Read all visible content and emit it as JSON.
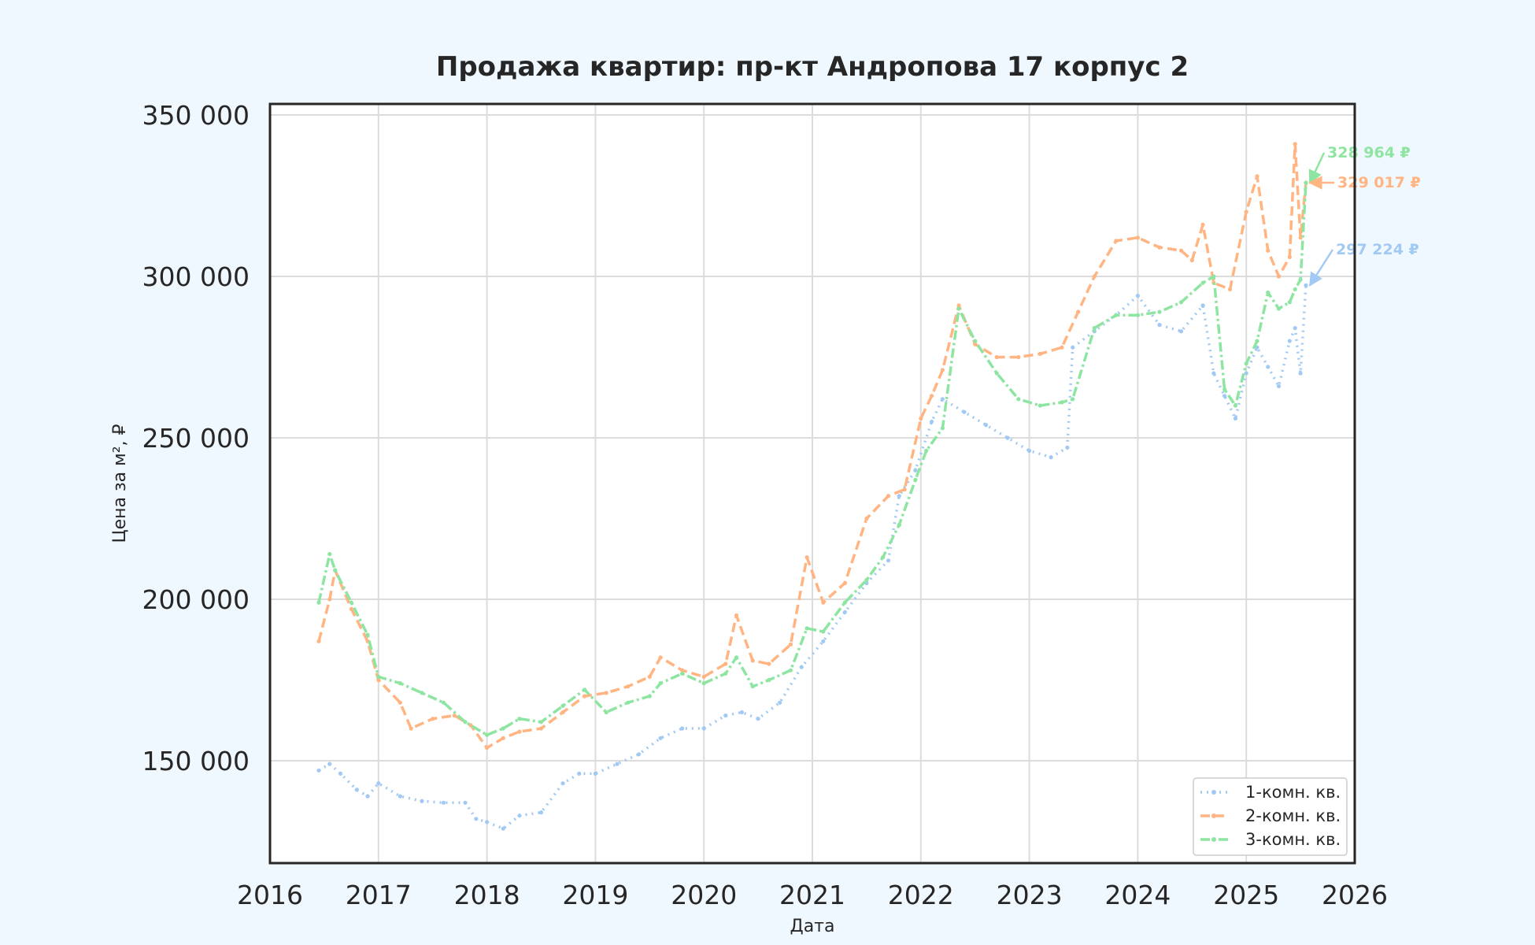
{
  "chart_data": {
    "type": "line",
    "title": "Продажа квартир: пр-кт Андропова 17 корпус 2",
    "xlabel": "Дата",
    "ylabel": "Цена за м², ₽",
    "xlim": [
      2016,
      2026
    ],
    "ylim": [
      118000,
      350000
    ],
    "x_ticks": [
      2016,
      2017,
      2018,
      2019,
      2020,
      2021,
      2022,
      2023,
      2024,
      2025,
      2026
    ],
    "x_tick_labels": [
      "2016",
      "2017",
      "2018",
      "2019",
      "2020",
      "2021",
      "2022",
      "2023",
      "2024",
      "2025",
      "2026"
    ],
    "y_ticks": [
      150000,
      200000,
      250000,
      300000,
      350000
    ],
    "y_tick_labels": [
      "150 000",
      "200 000",
      "250 000",
      "300 000",
      "350 000"
    ],
    "grid": true,
    "legend_position": "bottom-right",
    "series": [
      {
        "name": "1-комн. кв.",
        "color": "#a1c9f4",
        "style": "dotted",
        "x": [
          2016.45,
          2016.55,
          2016.65,
          2016.8,
          2016.9,
          2017.0,
          2017.2,
          2017.4,
          2017.6,
          2017.8,
          2017.9,
          2018.0,
          2018.15,
          2018.3,
          2018.5,
          2018.7,
          2018.85,
          2019.0,
          2019.2,
          2019.4,
          2019.6,
          2019.8,
          2020.0,
          2020.2,
          2020.35,
          2020.5,
          2020.7,
          2020.9,
          2021.1,
          2021.3,
          2021.5,
          2021.7,
          2021.8,
          2021.95,
          2022.1,
          2022.2,
          2022.4,
          2022.6,
          2022.8,
          2023.0,
          2023.2,
          2023.35,
          2023.4,
          2023.6,
          2023.8,
          2024.0,
          2024.2,
          2024.4,
          2024.6,
          2024.7,
          2024.8,
          2024.9,
          2025.0,
          2025.1,
          2025.2,
          2025.3,
          2025.4,
          2025.45,
          2025.5,
          2025.55
        ],
        "values": [
          147000,
          149000,
          146000,
          141000,
          139000,
          143000,
          139000,
          137500,
          137000,
          137000,
          132000,
          131000,
          129000,
          133000,
          134000,
          143000,
          146000,
          146000,
          149000,
          152000,
          157000,
          160000,
          160000,
          164000,
          165000,
          163000,
          168000,
          179000,
          187000,
          196000,
          205000,
          212000,
          232000,
          240000,
          255000,
          262000,
          258000,
          254000,
          250000,
          246000,
          244000,
          247000,
          278000,
          283000,
          288000,
          294000,
          285000,
          283000,
          291000,
          270000,
          263000,
          256000,
          270000,
          278000,
          272000,
          266000,
          280000,
          284000,
          270000,
          297224
        ]
      },
      {
        "name": "2-комн. кв.",
        "color": "#ffb482",
        "style": "dashed",
        "x": [
          2016.45,
          2016.55,
          2016.6,
          2016.75,
          2016.9,
          2017.0,
          2017.2,
          2017.3,
          2017.5,
          2017.7,
          2017.85,
          2018.0,
          2018.15,
          2018.3,
          2018.5,
          2018.7,
          2018.9,
          2019.1,
          2019.3,
          2019.5,
          2019.6,
          2019.8,
          2020.0,
          2020.2,
          2020.3,
          2020.45,
          2020.6,
          2020.8,
          2020.95,
          2021.1,
          2021.3,
          2021.5,
          2021.7,
          2021.85,
          2022.0,
          2022.1,
          2022.2,
          2022.35,
          2022.5,
          2022.7,
          2022.9,
          2023.1,
          2023.3,
          2023.45,
          2023.6,
          2023.8,
          2024.0,
          2024.2,
          2024.4,
          2024.5,
          2024.6,
          2024.7,
          2024.85,
          2025.0,
          2025.1,
          2025.2,
          2025.3,
          2025.4,
          2025.45,
          2025.5,
          2025.55
        ],
        "values": [
          187000,
          200000,
          209000,
          197000,
          187000,
          175000,
          168000,
          160000,
          163000,
          164000,
          161000,
          154000,
          157000,
          159000,
          160000,
          165000,
          170000,
          171000,
          173000,
          176000,
          182000,
          178000,
          176000,
          180000,
          195000,
          181000,
          180000,
          186000,
          213000,
          199000,
          205000,
          225000,
          232000,
          234000,
          256000,
          263000,
          271000,
          291000,
          279000,
          275000,
          275000,
          276000,
          278000,
          289000,
          300000,
          311000,
          312000,
          309000,
          308000,
          305000,
          316000,
          298000,
          296000,
          320000,
          331000,
          308000,
          300000,
          306000,
          341000,
          312000,
          329017
        ]
      },
      {
        "name": "3-комн. кв.",
        "color": "#8de5a1",
        "style": "dash-dot",
        "x": [
          2016.45,
          2016.55,
          2016.6,
          2016.75,
          2016.9,
          2017.0,
          2017.2,
          2017.4,
          2017.6,
          2017.8,
          2018.0,
          2018.15,
          2018.3,
          2018.5,
          2018.7,
          2018.9,
          2019.1,
          2019.3,
          2019.5,
          2019.6,
          2019.8,
          2020.0,
          2020.2,
          2020.3,
          2020.45,
          2020.6,
          2020.8,
          2020.95,
          2021.1,
          2021.3,
          2021.5,
          2021.65,
          2021.8,
          2021.95,
          2022.05,
          2022.2,
          2022.35,
          2022.5,
          2022.7,
          2022.9,
          2023.1,
          2023.3,
          2023.4,
          2023.6,
          2023.8,
          2024.0,
          2024.2,
          2024.4,
          2024.6,
          2024.7,
          2024.8,
          2024.9,
          2025.0,
          2025.1,
          2025.2,
          2025.3,
          2025.4,
          2025.45,
          2025.5,
          2025.55
        ],
        "values": [
          199000,
          214000,
          209000,
          199000,
          189000,
          176000,
          174000,
          171000,
          168000,
          162000,
          158000,
          160000,
          163000,
          162000,
          167000,
          172000,
          165000,
          168000,
          170000,
          174000,
          177000,
          174000,
          177000,
          182000,
          173000,
          175000,
          178000,
          191000,
          190000,
          199000,
          206000,
          213000,
          223000,
          237000,
          246000,
          253000,
          290000,
          280000,
          270000,
          262000,
          260000,
          261000,
          262000,
          284000,
          288000,
          288000,
          289000,
          292000,
          298000,
          300000,
          265000,
          260000,
          273000,
          280000,
          295000,
          290000,
          292000,
          296000,
          299000,
          328964
        ]
      }
    ],
    "annotations": [
      {
        "text": "328 964 ₽",
        "series": "3-комн. кв.",
        "color": "#8de5a1",
        "value": 328964
      },
      {
        "text": "329 017 ₽",
        "series": "2-комн. кв.",
        "color": "#ffb482",
        "value": 329017
      },
      {
        "text": "297 224 ₽",
        "series": "1-комн. кв.",
        "color": "#a1c9f4",
        "value": 297224
      }
    ]
  }
}
